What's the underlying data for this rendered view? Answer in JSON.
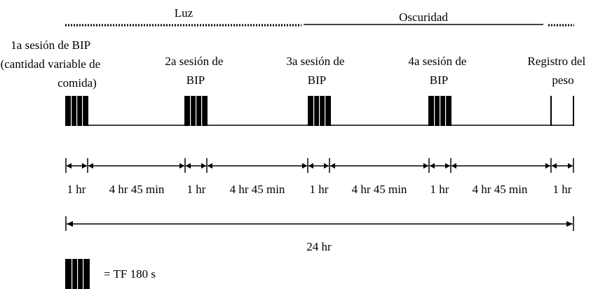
{
  "header": {
    "light_label": "Luz",
    "dark_label": "Oscuridad"
  },
  "sessions": [
    {
      "lines": [
        "1a sesión de BIP",
        "(cantidad variable de",
        "comida)"
      ]
    },
    {
      "lines": [
        "2a sesión de",
        "BIP"
      ]
    },
    {
      "lines": [
        "3a sesión de",
        "BIP"
      ]
    },
    {
      "lines": [
        "4a sesión de",
        "BIP"
      ]
    },
    {
      "lines": [
        "Registro del",
        "peso"
      ]
    }
  ],
  "intervals": [
    "1 hr",
    "4 hr 45 min",
    "1 hr",
    "4 hr 45 min",
    "1 hr",
    "4 hr 45 min",
    "1 hr",
    "4 hr 45 min",
    "1 hr"
  ],
  "total_label": "24 hr",
  "legend": {
    "label": "= TF 180 s"
  }
}
